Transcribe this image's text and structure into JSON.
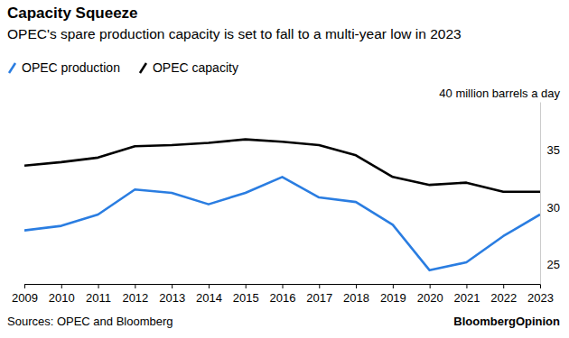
{
  "chart_data": {
    "type": "line",
    "title": "Capacity Squeeze",
    "subtitle": "OPEC's spare production capacity is set to fall to a multi-year low in 2023",
    "source": "Sources: OPEC and Bloomberg",
    "credit": "BloombergOpinion",
    "x": [
      2009,
      2010,
      2011,
      2012,
      2013,
      2014,
      2015,
      2016,
      2017,
      2018,
      2019,
      2020,
      2021,
      2022,
      2023
    ],
    "xlim": [
      2009,
      2023
    ],
    "xticks": [
      2009,
      2010,
      2011,
      2012,
      2013,
      2014,
      2015,
      2016,
      2017,
      2018,
      2019,
      2020,
      2021,
      2022,
      2023
    ],
    "ylim": [
      24,
      40
    ],
    "yticks": [
      25,
      30,
      35,
      {
        "value": 40,
        "label": "40 million barrels a day"
      }
    ],
    "legend": "top-left",
    "series": [
      {
        "name": "OPEC production",
        "color": "#2a7de1",
        "values": [
          28.7,
          29.1,
          30.1,
          32.3,
          32.0,
          31.0,
          32.0,
          33.4,
          31.6,
          31.2,
          29.2,
          25.2,
          25.9,
          28.2,
          30.1
        ]
      },
      {
        "name": "OPEC capacity",
        "color": "#000000",
        "values": [
          34.4,
          34.7,
          35.1,
          36.1,
          36.2,
          36.4,
          36.7,
          36.5,
          36.2,
          35.3,
          33.4,
          32.7,
          32.9,
          32.1,
          32.1
        ]
      }
    ]
  }
}
